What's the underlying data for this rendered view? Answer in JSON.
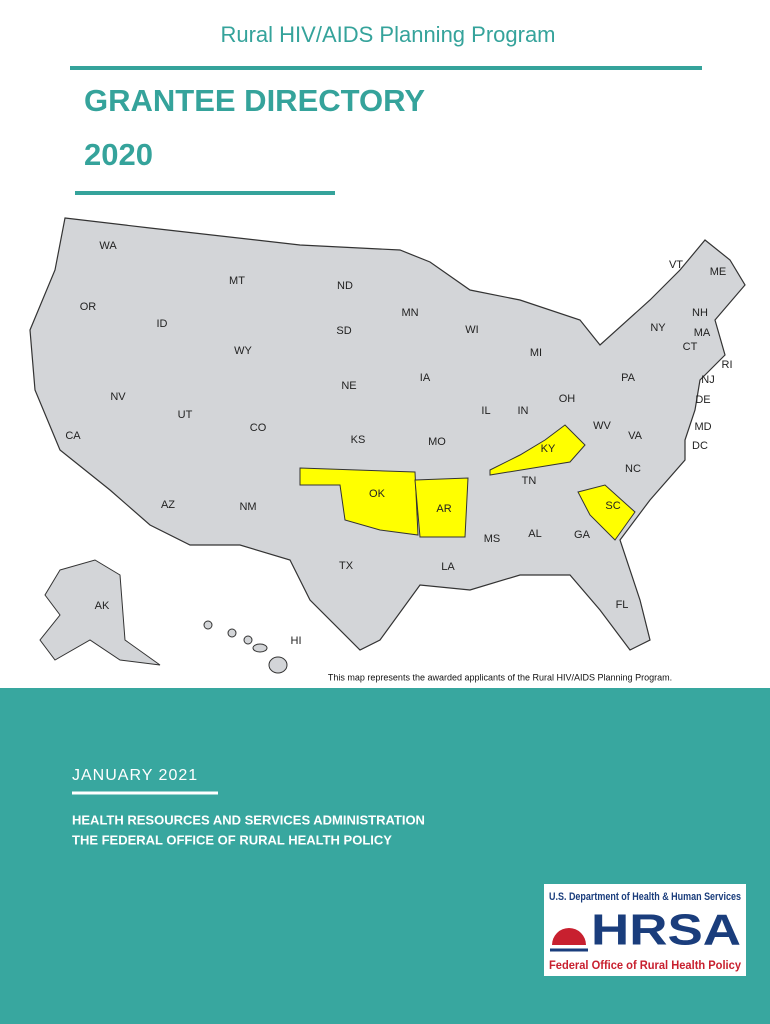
{
  "header": {
    "program": "Rural HIV/AIDS Planning Program",
    "title": "GRANTEE DIRECTORY",
    "year": "2020"
  },
  "map": {
    "states": [
      {
        "label": "WA",
        "highlighted": false
      },
      {
        "label": "MT",
        "highlighted": false
      },
      {
        "label": "ND",
        "highlighted": false
      },
      {
        "label": "MN",
        "highlighted": false
      },
      {
        "label": "VT",
        "highlighted": false
      },
      {
        "label": "ME",
        "highlighted": false
      },
      {
        "label": "OR",
        "highlighted": false
      },
      {
        "label": "ID",
        "highlighted": false
      },
      {
        "label": "SD",
        "highlighted": false
      },
      {
        "label": "WI",
        "highlighted": false
      },
      {
        "label": "NY",
        "highlighted": false
      },
      {
        "label": "NH",
        "highlighted": false
      },
      {
        "label": "MA",
        "highlighted": false
      },
      {
        "label": "CT",
        "highlighted": false
      },
      {
        "label": "RI",
        "highlighted": false
      },
      {
        "label": "WY",
        "highlighted": false
      },
      {
        "label": "MI",
        "highlighted": false
      },
      {
        "label": "IA",
        "highlighted": false
      },
      {
        "label": "NE",
        "highlighted": false
      },
      {
        "label": "PA",
        "highlighted": false
      },
      {
        "label": "NJ",
        "highlighted": false
      },
      {
        "label": "NV",
        "highlighted": false
      },
      {
        "label": "UT",
        "highlighted": false
      },
      {
        "label": "CO",
        "highlighted": false
      },
      {
        "label": "IL",
        "highlighted": false
      },
      {
        "label": "IN",
        "highlighted": false
      },
      {
        "label": "OH",
        "highlighted": false
      },
      {
        "label": "DE",
        "highlighted": false
      },
      {
        "label": "WV",
        "highlighted": false
      },
      {
        "label": "MD",
        "highlighted": false
      },
      {
        "label": "VA",
        "highlighted": false
      },
      {
        "label": "DC",
        "highlighted": false
      },
      {
        "label": "CA",
        "highlighted": false
      },
      {
        "label": "KS",
        "highlighted": false
      },
      {
        "label": "MO",
        "highlighted": false
      },
      {
        "label": "KY",
        "highlighted": true
      },
      {
        "label": "NC",
        "highlighted": false
      },
      {
        "label": "TN",
        "highlighted": false
      },
      {
        "label": "OK",
        "highlighted": true
      },
      {
        "label": "AR",
        "highlighted": true
      },
      {
        "label": "SC",
        "highlighted": true
      },
      {
        "label": "AZ",
        "highlighted": false
      },
      {
        "label": "NM",
        "highlighted": false
      },
      {
        "label": "MS",
        "highlighted": false
      },
      {
        "label": "AL",
        "highlighted": false
      },
      {
        "label": "GA",
        "highlighted": false
      },
      {
        "label": "TX",
        "highlighted": false
      },
      {
        "label": "LA",
        "highlighted": false
      },
      {
        "label": "FL",
        "highlighted": false
      },
      {
        "label": "AK",
        "highlighted": false
      },
      {
        "label": "HI",
        "highlighted": false
      }
    ],
    "caption": "This map represents the awarded applicants of the Rural HIV/AIDS Planning Program."
  },
  "footer": {
    "date": "JANUARY 2021",
    "agency": "HEALTH RESOURCES AND SERVICES ADMINISTRATION",
    "office": "THE FEDERAL OFFICE OF RURAL HEALTH POLICY"
  },
  "logo": {
    "department": "U.S. Department of Health & Human Services",
    "name": "HRSA",
    "office": "Federal Office of Rural Health Policy"
  }
}
